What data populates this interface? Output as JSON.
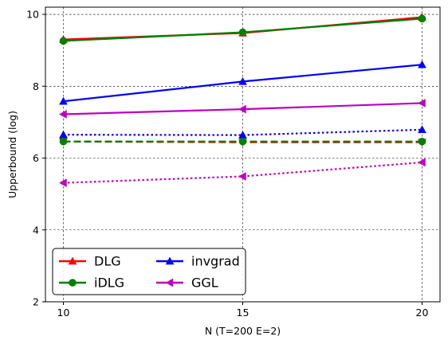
{
  "chart_data": {
    "type": "line",
    "xlabel": "N (T=200 E=2)",
    "ylabel": "Upperbound (log)",
    "x": [
      10,
      15,
      20
    ],
    "xlim": [
      9.5,
      20.5
    ],
    "ylim": [
      2,
      10.2
    ],
    "xticks": [
      "10",
      "15",
      "20"
    ],
    "yticks": [
      "2",
      "4",
      "6",
      "8",
      "10"
    ],
    "grid": true,
    "legend_position": "lower-left",
    "series": [
      {
        "name": "DLG",
        "color": "#ff0000",
        "marker": "triangle-up",
        "linestyle": "solid",
        "values": [
          9.3,
          9.48,
          9.92
        ],
        "in_legend": true
      },
      {
        "name": "",
        "color": "#ff0000",
        "marker": "triangle-down",
        "linestyle": "dashed",
        "values": [
          6.46,
          6.44,
          6.44
        ],
        "in_legend": false
      },
      {
        "name": "iDLG",
        "color": "#008000",
        "marker": "circle",
        "linestyle": "solid",
        "values": [
          9.26,
          9.5,
          9.88
        ],
        "in_legend": true
      },
      {
        "name": "",
        "color": "#008000",
        "marker": "circle",
        "linestyle": "dashed",
        "values": [
          6.46,
          6.46,
          6.46
        ],
        "in_legend": false
      },
      {
        "name": "invgrad",
        "color": "#0000ff",
        "marker": "triangle-up",
        "linestyle": "solid",
        "values": [
          7.58,
          8.13,
          8.6
        ],
        "in_legend": true
      },
      {
        "name": "",
        "color": "#0000ff",
        "marker": "triangle-up",
        "linestyle": "dotted",
        "values": [
          6.65,
          6.64,
          6.79
        ],
        "in_legend": false
      },
      {
        "name": "GGL",
        "color": "#bf00bf",
        "marker": "triangle-left",
        "linestyle": "solid",
        "values": [
          7.22,
          7.36,
          7.53
        ],
        "in_legend": true
      },
      {
        "name": "",
        "color": "#bf00bf",
        "marker": "triangle-left",
        "linestyle": "dotted",
        "values": [
          5.31,
          5.49,
          5.88
        ],
        "in_legend": false
      }
    ],
    "legend": [
      {
        "label": "DLG",
        "series_index": 0
      },
      {
        "label": "iDLG",
        "series_index": 2
      },
      {
        "label": "invgrad",
        "series_index": 4
      },
      {
        "label": "GGL",
        "series_index": 6
      }
    ]
  }
}
